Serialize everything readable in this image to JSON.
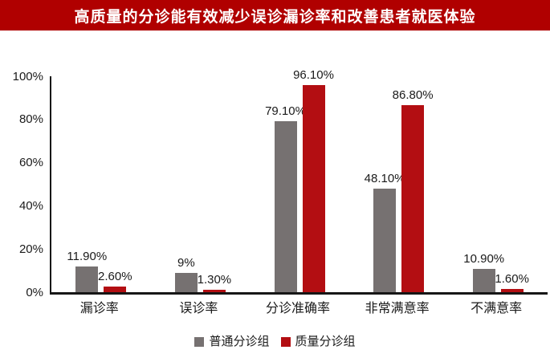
{
  "banner": {
    "title": "高质量的分诊能有效减少误诊漏诊率和改善患者就医体验"
  },
  "colors": {
    "banner_bg": "#b00000",
    "banner_fg": "#ffffff",
    "axis": "#161616",
    "label_text": "#1a1a1a"
  },
  "chart_data": {
    "type": "bar",
    "title": "高质量的分诊能有效减少误诊漏诊率和改善患者就医体验",
    "categories": [
      "漏诊率",
      "误诊率",
      "分诊准确率",
      "非常满意率",
      "不满意率"
    ],
    "series": [
      {
        "name": "普通分诊组",
        "color": "#767171",
        "values": [
          11.9,
          9,
          79.1,
          48.1,
          10.9
        ],
        "value_labels": [
          "11.90%",
          "9%",
          "79.10%",
          "48.10%",
          "10.90%"
        ]
      },
      {
        "name": "质量分诊组",
        "color": "#b30e12",
        "values": [
          2.6,
          1.3,
          96.1,
          86.8,
          1.6
        ],
        "value_labels": [
          "2.60%",
          "1.30%",
          "96.10%",
          "86.80%",
          "1.60%"
        ]
      }
    ],
    "xlabel": "",
    "ylabel": "",
    "ylim": [
      0,
      100
    ],
    "ytick_labels": [
      "100%",
      "80%",
      "60%",
      "40%",
      "20%",
      "0%"
    ],
    "grid": false,
    "legend_position": "bottom"
  }
}
